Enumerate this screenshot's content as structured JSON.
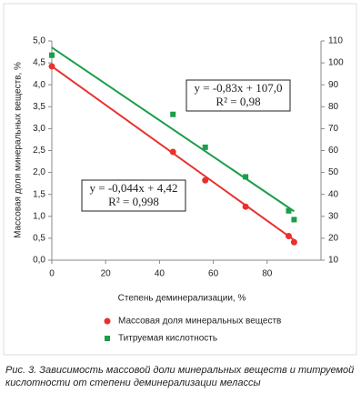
{
  "chart_data": {
    "type": "scatter",
    "y_label": "Массовая доля минеральных веществ, %",
    "x_label": "Степень деминерализации, %",
    "xlim": [
      0,
      100
    ],
    "xticks": [
      0,
      20,
      40,
      60,
      80
    ],
    "ylim": [
      0,
      5
    ],
    "yticks": [
      {
        "value": 0,
        "label": "0,0"
      },
      {
        "value": 0.5,
        "label": "0,5"
      },
      {
        "value": 1,
        "label": "1,0"
      },
      {
        "value": 1.5,
        "label": "1,5"
      },
      {
        "value": 2,
        "label": "2,0"
      },
      {
        "value": 2.5,
        "label": "2,5"
      },
      {
        "value": 3,
        "label": "3,0"
      },
      {
        "value": 3.5,
        "label": "3,5"
      },
      {
        "value": 4,
        "label": "4,0"
      },
      {
        "value": 4.5,
        "label": "4,5"
      },
      {
        "value": 5,
        "label": "5,0"
      }
    ],
    "y2lim": [
      10,
      110
    ],
    "y2ticks": [
      10,
      20,
      30,
      40,
      50,
      60,
      70,
      80,
      90,
      100,
      110
    ],
    "grid": false,
    "x": [
      0,
      45,
      57,
      72,
      88,
      90
    ],
    "series": [
      {
        "name": "Массовая доля минеральных веществ",
        "color": "#e8312f",
        "marker": "circle",
        "values": [
          4.42,
          2.47,
          1.82,
          1.22,
          0.55,
          0.41
        ],
        "trend": {
          "slope": -0.044,
          "intercept": 4.42,
          "equation": "y = -0,044x + 4,42",
          "r2": "R² = 0,998"
        }
      },
      {
        "name": "Титруемая кислотность",
        "color": "#1a9e4a",
        "marker": "square",
        "axis": "y2",
        "values": [
          103.5,
          76.5,
          61.5,
          48,
          32.5,
          28.5
        ],
        "trend": {
          "slope": -0.83,
          "intercept": 107.0,
          "equation": "y = -0,83x + 107,0",
          "r2": "R² = 0,98"
        }
      }
    ]
  },
  "caption": "Рис. 3. Зависимость массовой доли минеральных веществ и титруемой кислотности от степени деминерализации мелассы"
}
